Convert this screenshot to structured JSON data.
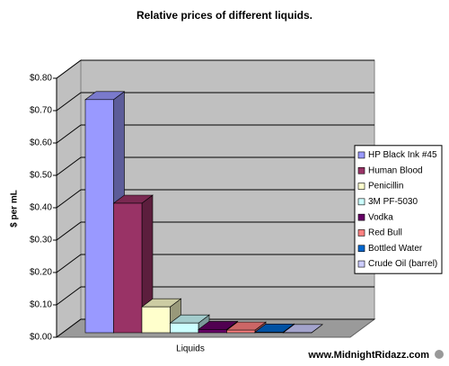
{
  "chart_data": {
    "type": "bar3d",
    "title": "Relative prices of different liquids.",
    "y_label": "$ per mL",
    "x_label": "Liquids",
    "categories": [
      null
    ],
    "series": [
      {
        "name": "HP Black Ink #45",
        "color": "#9999ff",
        "values": [
          0.72
        ]
      },
      {
        "name": "Human Blood",
        "color": "#993366",
        "values": [
          0.4
        ]
      },
      {
        "name": "Penicillin",
        "color": "#ffffcc",
        "values": [
          0.08
        ]
      },
      {
        "name": "3M PF-5030",
        "color": "#ccffff",
        "values": [
          0.03
        ]
      },
      {
        "name": "Vodka",
        "color": "#660066",
        "values": [
          0.01
        ]
      },
      {
        "name": "Red Bull",
        "color": "#ff8080",
        "values": [
          0.008
        ]
      },
      {
        "name": "Bottled Water",
        "color": "#0066cc",
        "values": [
          0.002
        ]
      },
      {
        "name": "Crude Oil (barrel)",
        "color": "#ccccff",
        "values": [
          0.0004
        ]
      }
    ],
    "ylim": [
      0,
      0.8
    ],
    "yticks": [
      {
        "value": 0,
        "label": "$0.00"
      },
      {
        "value": 0.1,
        "label": "$0.10"
      },
      {
        "value": 0.2,
        "label": "$0.20"
      },
      {
        "value": 0.3,
        "label": "$0.30"
      },
      {
        "value": 0.4,
        "label": "$0.40"
      },
      {
        "value": 0.5,
        "label": "$0.50"
      },
      {
        "value": 0.6,
        "label": "$0.60"
      },
      {
        "value": 0.7,
        "label": "$0.70"
      },
      {
        "value": 0.8,
        "label": "$0.80"
      }
    ],
    "grid": true,
    "legend": "right",
    "watermark": "www.MidnightRidazz.com"
  }
}
